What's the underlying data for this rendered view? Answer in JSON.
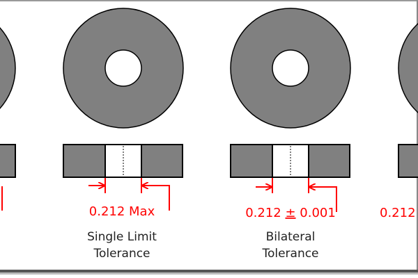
{
  "colors": {
    "part": "#808080",
    "outline": "#000000",
    "dimension": "#ff0000",
    "text": "#222222"
  },
  "panels": [
    {
      "dimension": "",
      "label_line1": "",
      "label_line2": ""
    },
    {
      "dimension": "0.212 Max",
      "label_line1": "Single Limit",
      "label_line2": "Tolerance"
    },
    {
      "dimension_value": "0.212",
      "dimension_sign": "±",
      "dimension_tol": "0.001",
      "label_line1": "Bilateral",
      "label_line2": "Tolerance"
    },
    {
      "dimension": "0.212 –"
    }
  ]
}
